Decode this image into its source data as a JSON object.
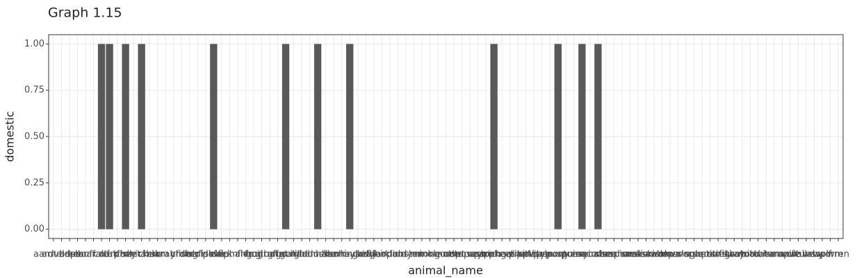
{
  "chart_data": {
    "type": "bar",
    "title": "Graph 1.15",
    "x_label": "animal_name",
    "y_label": "domestic",
    "categories": [
      "aardvark",
      "antelope",
      "bass",
      "bear",
      "boar",
      "buffalo",
      "calf",
      "carp",
      "catfish",
      "cavy",
      "cheetah",
      "chicken",
      "chub",
      "clam",
      "crab",
      "crayfish",
      "crow",
      "deer",
      "dogfish",
      "dolphin",
      "dove",
      "duck",
      "elephant",
      "flamingo",
      "flea",
      "frog",
      "fruitbat",
      "giraffe",
      "gnat",
      "goat",
      "gorilla",
      "gull",
      "haddock",
      "hamster",
      "hare",
      "hawk",
      "herring",
      "honeybee",
      "housefly",
      "kiwi",
      "ladybird",
      "lark",
      "leopard",
      "lion",
      "lobster",
      "lynx",
      "mink",
      "mole",
      "mongoose",
      "moth",
      "newt",
      "octopus",
      "opossum",
      "oryx",
      "ostrich",
      "parakeet",
      "penguin",
      "pheasant",
      "pike",
      "piranha",
      "pitviper",
      "platypus",
      "polecat",
      "pony",
      "porpoise",
      "puma",
      "pussycat",
      "raccoon",
      "reindeer",
      "rhea",
      "scorpion",
      "seahorse",
      "seal",
      "sealion",
      "seasnake",
      "seawasp",
      "skimmer",
      "skua",
      "slowworm",
      "slug",
      "sole",
      "sparrow",
      "squirrel",
      "starfish",
      "stingray",
      "swan",
      "termite",
      "toad",
      "tortoise",
      "tuatara",
      "tuna",
      "vampire",
      "vole",
      "vulture",
      "wallaby",
      "wasp",
      "wolf",
      "worm",
      "wren"
    ],
    "values": [
      0,
      0,
      0,
      0,
      0,
      0,
      1,
      1,
      0,
      1,
      0,
      1,
      0,
      0,
      0,
      0,
      0,
      0,
      0,
      0,
      1,
      0,
      0,
      0,
      0,
      0,
      0,
      0,
      0,
      1,
      0,
      0,
      0,
      1,
      0,
      0,
      0,
      1,
      0,
      0,
      0,
      0,
      0,
      0,
      0,
      0,
      0,
      0,
      0,
      0,
      0,
      0,
      0,
      0,
      0,
      1,
      0,
      0,
      0,
      0,
      0,
      0,
      0,
      1,
      0,
      0,
      1,
      0,
      1,
      0,
      0,
      0,
      0,
      0,
      0,
      0,
      0,
      0,
      0,
      0,
      0,
      0,
      0,
      0,
      0,
      0,
      0,
      0,
      0,
      0,
      0,
      0,
      0,
      0,
      0,
      0,
      0,
      0,
      0
    ],
    "color": "#595959",
    "ylim": [
      -0.05,
      1.05
    ],
    "yticks": [
      {
        "value": 0,
        "label": "0.00"
      },
      {
        "value": 0.25,
        "label": "0.25"
      },
      {
        "value": 0.5,
        "label": "0.50"
      },
      {
        "value": 0.75,
        "label": "0.75"
      },
      {
        "value": 1,
        "label": "1.00"
      }
    ],
    "grid": true
  }
}
